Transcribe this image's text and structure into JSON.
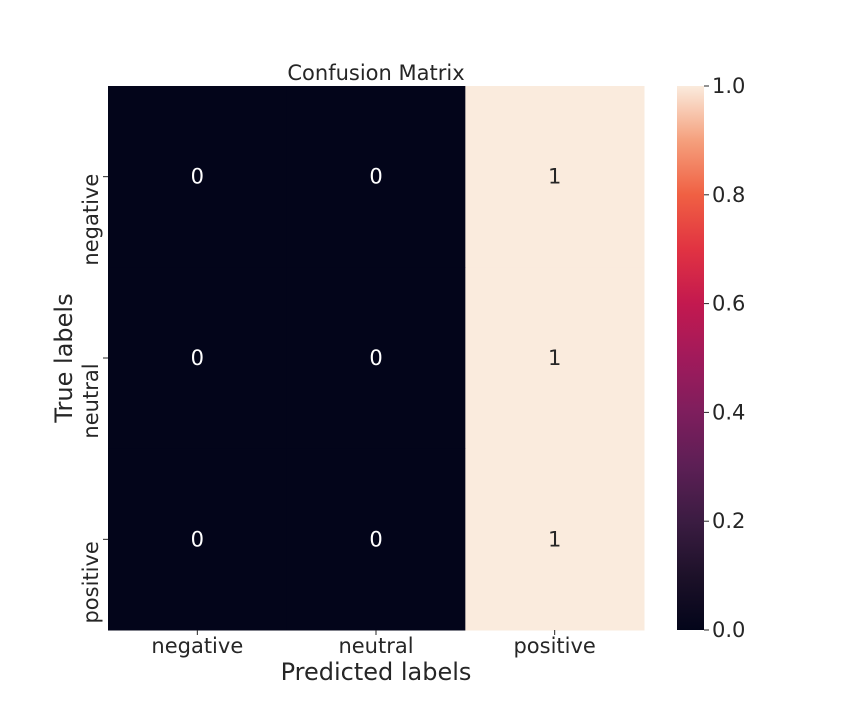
{
  "chart_data": {
    "type": "heatmap",
    "title": "Confusion Matrix",
    "xlabel": "Predicted labels",
    "ylabel": "True labels",
    "x_categories": [
      "negative",
      "neutral",
      "positive"
    ],
    "y_categories": [
      "negative",
      "neutral",
      "positive"
    ],
    "values": [
      [
        0,
        0,
        1
      ],
      [
        0,
        0,
        1
      ],
      [
        0,
        0,
        1
      ]
    ],
    "annotations": [
      [
        "0",
        "0",
        "1"
      ],
      [
        "0",
        "0",
        "1"
      ],
      [
        "0",
        "0",
        "1"
      ]
    ],
    "colorbar": {
      "range": [
        0.0,
        1.0
      ],
      "ticks": [
        "0.0",
        "0.2",
        "0.4",
        "0.6",
        "0.8",
        "1.0"
      ],
      "colormap": "rocket"
    },
    "colors": {
      "low": "#03051a",
      "high": "#faebdd",
      "annot_on_dark": "#ffffff",
      "annot_on_light": "#262626"
    }
  }
}
